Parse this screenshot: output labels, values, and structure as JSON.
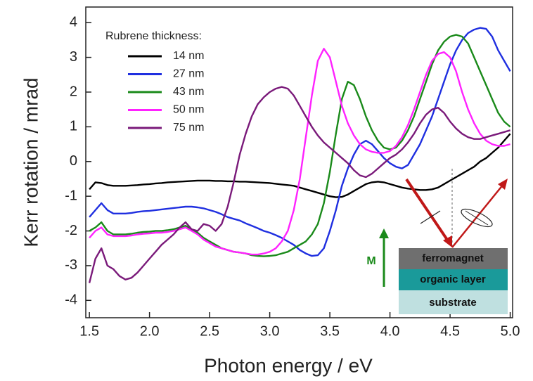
{
  "chart_data": {
    "type": "line",
    "x_label": "Photon energy / eV",
    "y_label": "Kerr rotation / mrad",
    "legend_title": "Rubrene thickness:",
    "annotations": [
      "ferromagnet",
      "organic layer",
      "substrate",
      "M"
    ],
    "xlim": [
      1.47,
      5.02
    ],
    "ylim": [
      -4.5,
      4.45
    ],
    "xticks": [
      1.5,
      {
        "value": 2,
        "label": "2.0"
      },
      2.5,
      {
        "value": 3,
        "label": "3.0"
      },
      3.5,
      {
        "value": 4,
        "label": "4.0"
      },
      4.5,
      {
        "value": 5,
        "label": "5.0"
      }
    ],
    "yticks": [
      -4,
      -3,
      -2,
      -1,
      0,
      1,
      2,
      3,
      4
    ],
    "x": [
      1.5,
      1.55,
      1.6,
      1.65,
      1.7,
      1.75,
      1.8,
      1.85,
      1.9,
      1.95,
      2.0,
      2.05,
      2.1,
      2.15,
      2.2,
      2.25,
      2.3,
      2.35,
      2.4,
      2.45,
      2.5,
      2.55,
      2.6,
      2.65,
      2.7,
      2.75,
      2.8,
      2.85,
      2.9,
      2.95,
      3.0,
      3.05,
      3.1,
      3.15,
      3.2,
      3.25,
      3.3,
      3.35,
      3.4,
      3.45,
      3.5,
      3.55,
      3.6,
      3.65,
      3.7,
      3.75,
      3.8,
      3.85,
      3.9,
      3.95,
      4.0,
      4.05,
      4.1,
      4.15,
      4.2,
      4.25,
      4.3,
      4.35,
      4.4,
      4.45,
      4.5,
      4.55,
      4.6,
      4.65,
      4.7,
      4.75,
      4.8,
      4.85,
      4.9,
      4.95,
      5.0
    ],
    "series": [
      {
        "name": "14 nm",
        "color": "#000000",
        "values": [
          -0.8,
          -0.6,
          -0.62,
          -0.68,
          -0.7,
          -0.7,
          -0.7,
          -0.69,
          -0.68,
          -0.66,
          -0.65,
          -0.63,
          -0.62,
          -0.6,
          -0.59,
          -0.58,
          -0.57,
          -0.56,
          -0.55,
          -0.55,
          -0.55,
          -0.56,
          -0.56,
          -0.57,
          -0.57,
          -0.58,
          -0.58,
          -0.59,
          -0.6,
          -0.61,
          -0.62,
          -0.64,
          -0.66,
          -0.68,
          -0.7,
          -0.75,
          -0.8,
          -0.85,
          -0.9,
          -0.95,
          -1.0,
          -1.03,
          -1.02,
          -0.95,
          -0.85,
          -0.75,
          -0.65,
          -0.6,
          -0.58,
          -0.6,
          -0.65,
          -0.7,
          -0.75,
          -0.78,
          -0.8,
          -0.82,
          -0.82,
          -0.8,
          -0.75,
          -0.65,
          -0.55,
          -0.45,
          -0.35,
          -0.25,
          -0.15,
          0.0,
          0.1,
          0.25,
          0.4,
          0.6,
          0.8
        ]
      },
      {
        "name": "27 nm",
        "color": "#1f2fe0",
        "values": [
          -1.6,
          -1.4,
          -1.2,
          -1.4,
          -1.5,
          -1.5,
          -1.5,
          -1.48,
          -1.45,
          -1.43,
          -1.42,
          -1.4,
          -1.38,
          -1.36,
          -1.34,
          -1.32,
          -1.3,
          -1.3,
          -1.32,
          -1.35,
          -1.4,
          -1.45,
          -1.52,
          -1.6,
          -1.65,
          -1.7,
          -1.78,
          -1.85,
          -1.92,
          -2.0,
          -2.05,
          -2.12,
          -2.2,
          -2.3,
          -2.4,
          -2.55,
          -2.65,
          -2.72,
          -2.7,
          -2.5,
          -2.0,
          -1.4,
          -0.7,
          -0.2,
          0.2,
          0.5,
          0.6,
          0.5,
          0.3,
          0.1,
          -0.05,
          -0.15,
          -0.2,
          -0.1,
          0.2,
          0.5,
          0.9,
          1.3,
          1.8,
          2.3,
          2.8,
          3.2,
          3.5,
          3.7,
          3.8,
          3.85,
          3.82,
          3.6,
          3.2,
          2.9,
          2.6
        ]
      },
      {
        "name": "43 nm",
        "color": "#1a8a1a",
        "values": [
          -2.0,
          -1.9,
          -1.75,
          -2.0,
          -2.1,
          -2.1,
          -2.1,
          -2.08,
          -2.05,
          -2.03,
          -2.02,
          -2.0,
          -2.0,
          -1.98,
          -1.95,
          -1.9,
          -1.85,
          -1.95,
          -2.05,
          -2.2,
          -2.3,
          -2.4,
          -2.5,
          -2.55,
          -2.6,
          -2.62,
          -2.65,
          -2.7,
          -2.72,
          -2.73,
          -2.72,
          -2.7,
          -2.65,
          -2.6,
          -2.5,
          -2.4,
          -2.3,
          -2.1,
          -1.8,
          -1.2,
          -0.3,
          0.8,
          1.8,
          2.3,
          2.2,
          1.8,
          1.3,
          0.9,
          0.6,
          0.4,
          0.35,
          0.4,
          0.6,
          0.9,
          1.3,
          1.8,
          2.3,
          2.8,
          3.2,
          3.45,
          3.6,
          3.65,
          3.6,
          3.4,
          3.0,
          2.6,
          2.2,
          1.8,
          1.4,
          1.15,
          1.0
        ]
      },
      {
        "name": "50 nm",
        "color": "#ff22ff",
        "values": [
          -2.2,
          -2.0,
          -1.9,
          -2.1,
          -2.15,
          -2.15,
          -2.15,
          -2.13,
          -2.1,
          -2.08,
          -2.07,
          -2.05,
          -2.05,
          -2.03,
          -2.0,
          -1.95,
          -1.9,
          -2.0,
          -2.1,
          -2.25,
          -2.35,
          -2.45,
          -2.5,
          -2.55,
          -2.6,
          -2.62,
          -2.65,
          -2.68,
          -2.68,
          -2.65,
          -2.6,
          -2.5,
          -2.3,
          -2.0,
          -1.4,
          -0.5,
          0.7,
          1.9,
          2.9,
          3.25,
          3.0,
          2.3,
          1.6,
          1.1,
          0.75,
          0.5,
          0.35,
          0.28,
          0.25,
          0.25,
          0.3,
          0.45,
          0.7,
          1.05,
          1.5,
          2.0,
          2.5,
          2.9,
          3.1,
          3.15,
          3.0,
          2.6,
          2.0,
          1.5,
          1.1,
          0.8,
          0.6,
          0.5,
          0.45,
          0.45,
          0.5
        ]
      },
      {
        "name": "75 nm",
        "color": "#7a1a7a",
        "values": [
          -3.5,
          -2.8,
          -2.5,
          -3.0,
          -3.1,
          -3.3,
          -3.4,
          -3.35,
          -3.2,
          -3.0,
          -2.8,
          -2.6,
          -2.4,
          -2.25,
          -2.1,
          -1.9,
          -1.75,
          -1.95,
          -2.0,
          -1.8,
          -1.85,
          -2.0,
          -1.8,
          -1.3,
          -0.6,
          0.2,
          0.8,
          1.3,
          1.65,
          1.85,
          2.0,
          2.1,
          2.15,
          2.1,
          1.9,
          1.6,
          1.3,
          1.0,
          0.75,
          0.55,
          0.4,
          0.25,
          0.1,
          -0.05,
          -0.25,
          -0.4,
          -0.45,
          -0.35,
          -0.2,
          -0.05,
          0.1,
          0.2,
          0.35,
          0.55,
          0.8,
          1.1,
          1.35,
          1.5,
          1.55,
          1.4,
          1.15,
          0.95,
          0.8,
          0.7,
          0.65,
          0.65,
          0.7,
          0.75,
          0.8,
          0.85,
          0.9
        ]
      }
    ]
  }
}
